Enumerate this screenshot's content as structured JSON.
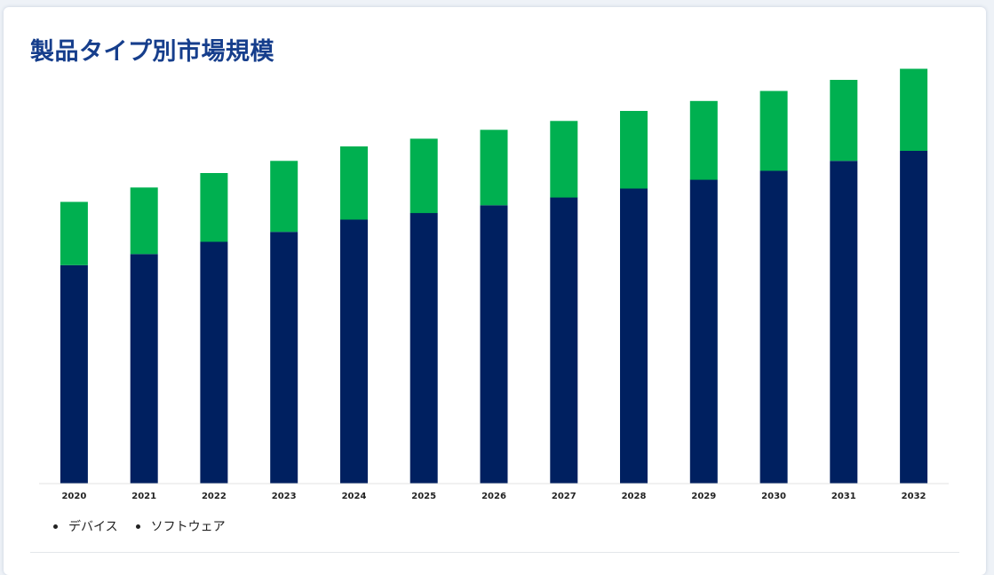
{
  "title": "製品タイプ別市場規模",
  "chart_data": {
    "type": "bar",
    "stacked": true,
    "categories": [
      "2020",
      "2021",
      "2022",
      "2023",
      "2024",
      "2025",
      "2026",
      "2027",
      "2028",
      "2029",
      "2030",
      "2031",
      "2032"
    ],
    "series": [
      {
        "name": "デバイス",
        "color": "#002060",
        "values": [
          197,
          207,
          218,
          227,
          238,
          244,
          251,
          258,
          266,
          274,
          282,
          291,
          300
        ]
      },
      {
        "name": "ソフトウェア",
        "color": "#00b050",
        "values": [
          57,
          60,
          62,
          64,
          66,
          67,
          68,
          69,
          70,
          71,
          72,
          73,
          74
        ]
      }
    ],
    "xlabel": "",
    "ylabel": "",
    "ylim": [
      0,
      400
    ],
    "grid": false,
    "legend_position": "bottom-left"
  }
}
